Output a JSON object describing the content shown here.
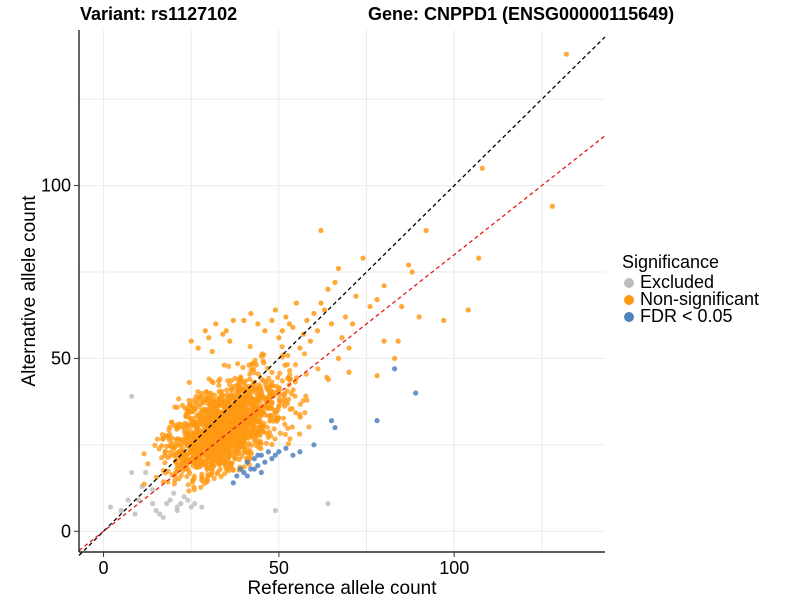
{
  "chart_data": {
    "type": "scatter",
    "title_left": "Variant: rs1127102",
    "title_right": "Gene: CNPPD1 (ENSG00000115649)",
    "xlabel": "Reference allele count",
    "ylabel": "Alternative allele count",
    "xlim": [
      -7,
      143
    ],
    "ylim": [
      -6,
      145
    ],
    "x_ticks": [
      0,
      50,
      100
    ],
    "y_ticks": [
      0,
      50,
      100
    ],
    "grid": true,
    "reference_lines": [
      {
        "name": "identity",
        "slope": 1.0,
        "intercept": 0,
        "color": "#000000",
        "style": "dashed"
      },
      {
        "name": "fitted",
        "slope": 0.8,
        "intercept": 0,
        "color": "#e41a1c",
        "style": "dashed"
      }
    ],
    "legend": {
      "title": "Significance",
      "position": "right",
      "entries": [
        {
          "label": "Excluded",
          "color": "#bebebe"
        },
        {
          "label": "Non-significant",
          "color": "#ff9912"
        },
        {
          "label": "FDR < 0.05",
          "color": "#4f81bd"
        }
      ]
    },
    "series": [
      {
        "name": "Excluded",
        "color": "#bebebe",
        "x": [
          8,
          2,
          5,
          7,
          9,
          11,
          12,
          14,
          15,
          16,
          18,
          19,
          20,
          21,
          22,
          23,
          24,
          25,
          26,
          28,
          8,
          10,
          14,
          17,
          21,
          49,
          64
        ],
        "y": [
          39,
          7,
          6,
          9,
          5,
          13,
          17,
          8,
          6,
          5,
          8,
          9,
          11,
          7,
          8,
          10,
          9,
          7,
          8,
          7,
          17,
          9,
          12,
          4,
          6,
          6,
          8
        ]
      },
      {
        "name": "Non-significant",
        "color": "#ff9912",
        "cluster": {
          "count": 1500,
          "seed": 7,
          "center": [
            35,
            30
          ],
          "sd_along": 10,
          "sd_across": 5.5
        },
        "x": [
          132,
          108,
          128,
          107,
          104,
          97,
          92,
          88,
          84,
          83,
          80,
          78,
          76,
          74,
          72,
          71,
          70,
          69,
          68,
          67,
          66,
          65,
          64,
          63,
          62,
          61,
          60,
          59,
          58,
          57,
          56,
          55,
          54,
          53,
          52,
          51,
          50,
          49,
          62,
          67,
          70,
          80,
          85,
          87,
          90,
          78,
          30,
          32,
          35,
          37,
          40,
          42,
          44,
          46,
          48,
          25,
          27,
          29,
          31,
          34,
          36
        ],
        "y": [
          138,
          105,
          94,
          79,
          64,
          61,
          87,
          75,
          55,
          50,
          71,
          67,
          65,
          79,
          68,
          60,
          53,
          62,
          56,
          76,
          72,
          60,
          70,
          64,
          66,
          58,
          63,
          55,
          61,
          57,
          53,
          66,
          59,
          60,
          62,
          58,
          56,
          64,
          87,
          50,
          46,
          55,
          65,
          77,
          62,
          45,
          56,
          60,
          58,
          61,
          61,
          63,
          60,
          58,
          61,
          55,
          53,
          58,
          52,
          57,
          55
        ]
      },
      {
        "name": "FDR < 0.05",
        "color": "#4f81bd",
        "x": [
          89,
          83,
          78,
          66,
          65,
          60,
          56,
          54,
          52,
          50,
          49,
          48,
          47,
          46,
          45,
          44,
          43,
          42,
          41,
          40,
          39,
          38,
          37,
          41,
          43,
          44,
          45
        ],
        "y": [
          40,
          47,
          32,
          30,
          32,
          25,
          23,
          22,
          24,
          23,
          22,
          21,
          23,
          20,
          22,
          19,
          21,
          18,
          20,
          17,
          18,
          16,
          14,
          16,
          18,
          22,
          17
        ]
      }
    ]
  }
}
